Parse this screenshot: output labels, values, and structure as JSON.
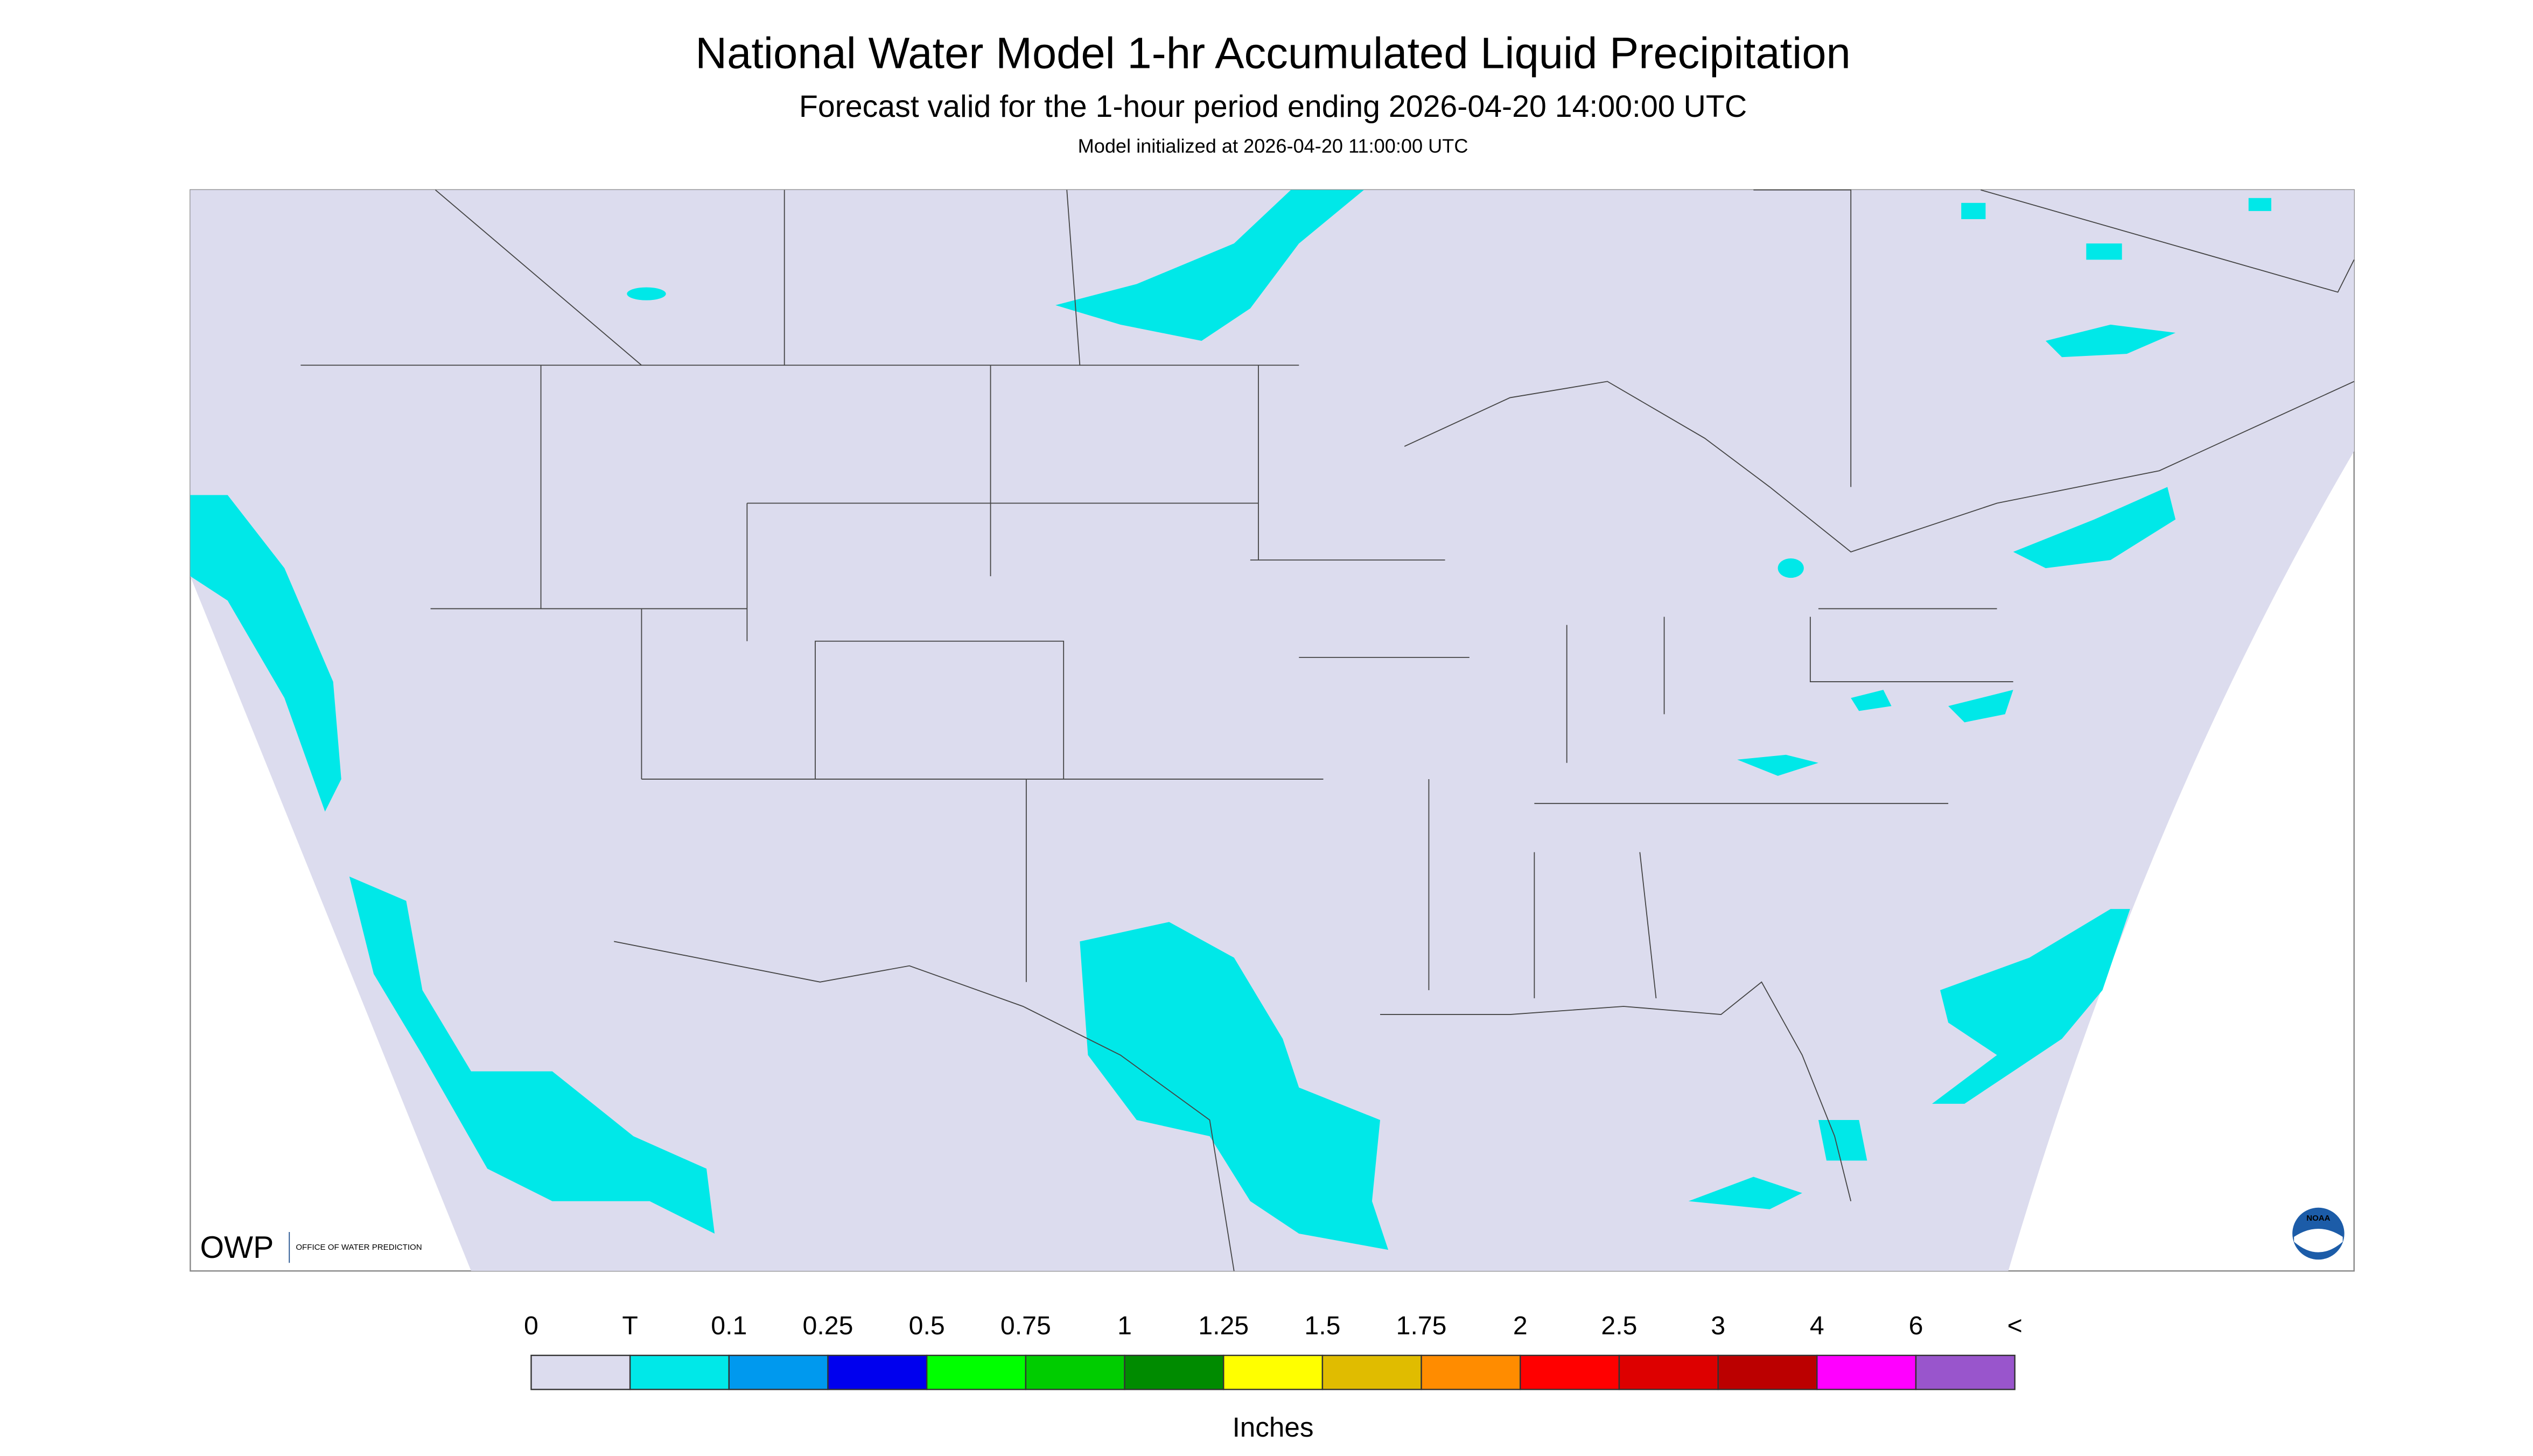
{
  "header": {
    "title": "National Water Model 1-hr Accumulated Liquid Precipitation",
    "subtitle": "Forecast valid for the 1-hour period ending 2026-04-20 14:00:00 UTC",
    "initialized": "Model initialized at 2026-04-20 11:00:00 UTC"
  },
  "legend": {
    "labels": [
      "0",
      "T",
      "0.1",
      "0.25",
      "0.5",
      "0.75",
      "1",
      "1.25",
      "1.5",
      "1.75",
      "2",
      "2.5",
      "3",
      "4",
      "6",
      "<"
    ],
    "colors": [
      "#dcdcee",
      "#00e8e8",
      "#0099ee",
      "#0000ee",
      "#00ff00",
      "#00cc00",
      "#008b00",
      "#ffff00",
      "#e0bc00",
      "#ff8c00",
      "#ff0000",
      "#dd0000",
      "#bb0000",
      "#ff00ff",
      "#9955cc"
    ],
    "unit": "Inches"
  },
  "logos": {
    "owp": "OWP",
    "owp_name": "OFFICE OF WATER PREDICTION",
    "noaa": "NOAA"
  }
}
